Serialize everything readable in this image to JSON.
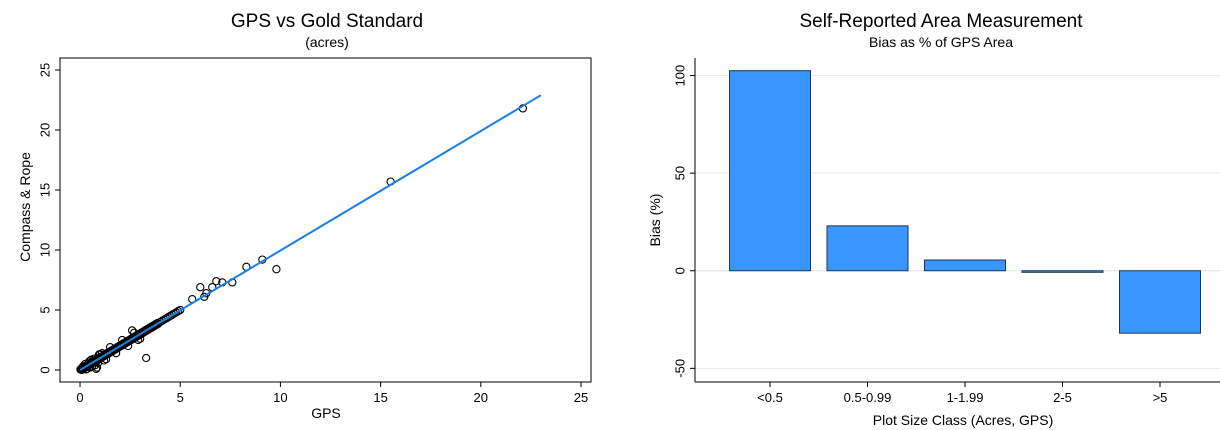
{
  "colors": {
    "line": "#1a7fe0",
    "bar": "#3a96ff",
    "bar_edge": "#1f3550",
    "marker_edge": "#000000",
    "grid": "#e6e6e6"
  },
  "chart_data": [
    {
      "type": "scatter",
      "title": "GPS vs Gold Standard",
      "subtitle": "(acres)",
      "xlabel": "GPS",
      "ylabel": "Compass & Rope",
      "xlim": [
        -1,
        25.5
      ],
      "ylim": [
        -1,
        26
      ],
      "xticks": [
        "0",
        "5",
        "10",
        "15",
        "20",
        "25"
      ],
      "yticks": [
        "0",
        "5",
        "10",
        "15",
        "20",
        "25"
      ],
      "grid": false,
      "series": [
        {
          "kind": "points",
          "x": [
            0.02,
            0.05,
            0.08,
            0.1,
            0.12,
            0.15,
            0.18,
            0.2,
            0.22,
            0.25,
            0.28,
            0.3,
            0.33,
            0.35,
            0.38,
            0.4,
            0.42,
            0.45,
            0.48,
            0.5,
            0.53,
            0.55,
            0.58,
            0.6,
            0.63,
            0.65,
            0.68,
            0.7,
            0.72,
            0.75,
            0.78,
            0.8,
            0.83,
            0.85,
            0.88,
            0.9,
            0.95,
            1.0,
            1.05,
            1.1,
            1.15,
            1.2,
            1.25,
            1.3,
            1.35,
            1.4,
            1.45,
            1.5,
            1.55,
            1.6,
            1.65,
            1.7,
            1.75,
            1.8,
            1.85,
            1.9,
            1.95,
            2.0,
            2.05,
            2.1,
            2.15,
            2.2,
            2.25,
            2.3,
            2.35,
            2.4,
            2.45,
            2.5,
            2.55,
            2.6,
            2.65,
            2.7,
            2.75,
            2.8,
            2.85,
            2.9,
            2.95,
            3.0,
            3.05,
            3.1,
            3.15,
            3.2,
            3.25,
            3.3,
            3.35,
            3.4,
            3.45,
            3.5,
            3.55,
            3.6,
            3.65,
            3.7,
            3.75,
            3.8,
            3.85,
            3.9,
            4.0,
            4.1,
            4.2,
            4.3,
            4.4,
            4.5,
            4.6,
            4.7,
            4.8,
            4.9,
            5.0,
            0.15,
            0.3,
            0.45,
            0.6,
            0.25,
            0.5,
            0.7,
            0.9,
            1.1,
            1.3,
            0.35,
            0.55,
            0.75,
            0.95,
            1.2,
            1.5,
            1.8,
            2.1,
            2.4,
            2.7,
            3.0,
            0.8,
            1.0,
            2.6,
            2.9,
            3.3,
            0.85,
            5.6,
            6.0,
            6.2,
            6.3,
            6.6,
            6.8,
            7.1,
            7.6,
            8.3,
            9.1,
            9.8,
            15.5,
            22.1
          ],
          "y": [
            0.05,
            0.1,
            0.0,
            0.15,
            0.2,
            0.1,
            0.25,
            0.15,
            0.3,
            0.2,
            0.35,
            0.25,
            0.4,
            0.3,
            0.45,
            0.35,
            0.5,
            0.4,
            0.55,
            0.45,
            0.6,
            0.5,
            0.65,
            0.55,
            0.7,
            0.6,
            0.75,
            0.65,
            0.8,
            0.7,
            0.85,
            0.75,
            0.9,
            0.8,
            0.95,
            0.85,
            1.0,
            0.95,
            1.1,
            1.05,
            1.2,
            1.15,
            1.3,
            1.25,
            1.4,
            1.35,
            1.5,
            1.45,
            1.6,
            1.55,
            1.7,
            1.65,
            1.8,
            1.75,
            1.9,
            1.85,
            2.0,
            1.95,
            2.1,
            2.05,
            2.2,
            2.15,
            2.3,
            2.25,
            2.4,
            2.35,
            2.5,
            2.45,
            2.6,
            2.55,
            2.7,
            2.65,
            2.8,
            2.75,
            2.9,
            2.85,
            3.0,
            2.95,
            3.1,
            3.05,
            3.2,
            3.15,
            3.3,
            3.25,
            3.4,
            3.35,
            3.5,
            3.45,
            3.6,
            3.55,
            3.7,
            3.65,
            3.8,
            3.75,
            3.9,
            3.85,
            4.0,
            4.1,
            4.2,
            4.3,
            4.4,
            4.5,
            4.6,
            4.7,
            4.8,
            4.9,
            5.0,
            0.3,
            0.05,
            0.7,
            0.3,
            0.5,
            0.2,
            0.95,
            0.6,
            1.4,
            0.9,
            0.1,
            0.85,
            0.4,
            1.3,
            0.8,
            1.9,
            1.4,
            2.5,
            2.0,
            3.1,
            2.6,
            0.1,
            1.3,
            3.3,
            2.5,
            1.0,
            0.2,
            5.9,
            6.9,
            6.1,
            6.4,
            6.9,
            7.4,
            7.3,
            7.3,
            8.6,
            9.2,
            8.4,
            15.7,
            21.8
          ]
        },
        {
          "kind": "fit-line",
          "x": [
            0,
            23
          ],
          "y": [
            0,
            22.9
          ]
        }
      ]
    },
    {
      "type": "bar",
      "title": "Self-Reported Area Measurement",
      "subtitle": "Bias as % of GPS Area",
      "xlabel": "Plot Size Class (Acres, GPS)",
      "ylabel": "Bias (%)",
      "categories": [
        "<0.5",
        "0.5-0.99",
        "1-1.99",
        "2-5",
        ">5"
      ],
      "values": [
        102.5,
        23.0,
        5.5,
        -0.8,
        -32.0
      ],
      "ylim": [
        -57,
        109
      ],
      "yticks": [
        "-50",
        "0",
        "50",
        "100"
      ],
      "grid": true
    }
  ]
}
